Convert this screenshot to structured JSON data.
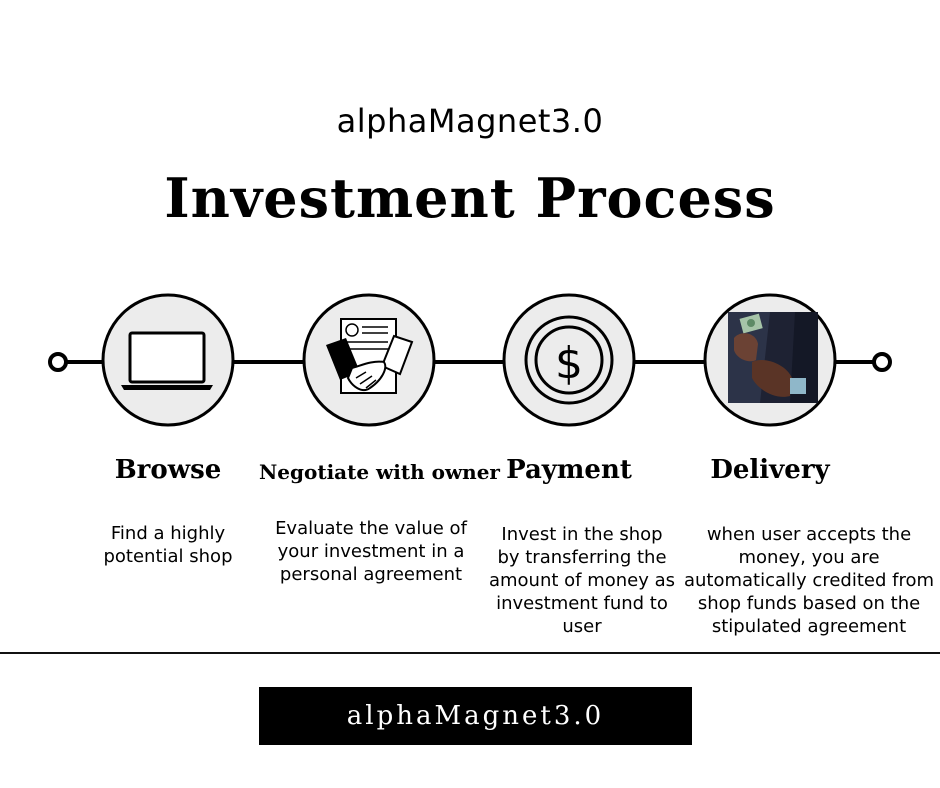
{
  "header": {
    "brand": "alphaMagnet3.0",
    "title": "Investment Process"
  },
  "steps": [
    {
      "icon": "laptop-icon",
      "title": "Browse",
      "description": "Find a highly potential shop"
    },
    {
      "icon": "handshake-icon",
      "title": "Negotiate with owner",
      "description": "Evaluate the value of your investment in a personal agreement"
    },
    {
      "icon": "dollar-coin-icon",
      "title": "Payment",
      "description": "Invest in the shop by transferring the amount of money as investment fund to user"
    },
    {
      "icon": "money-pocket-photo",
      "title": "Delivery",
      "description": "when user accepts the money, you are automatically credited from shop funds based on the stipulated agreement"
    }
  ],
  "footer": {
    "brand": "alphaMagnet3.0"
  },
  "colors": {
    "circle_fill": "#ececec",
    "line": "#000000",
    "footer_bg": "#000000",
    "footer_text": "#ffffff"
  }
}
